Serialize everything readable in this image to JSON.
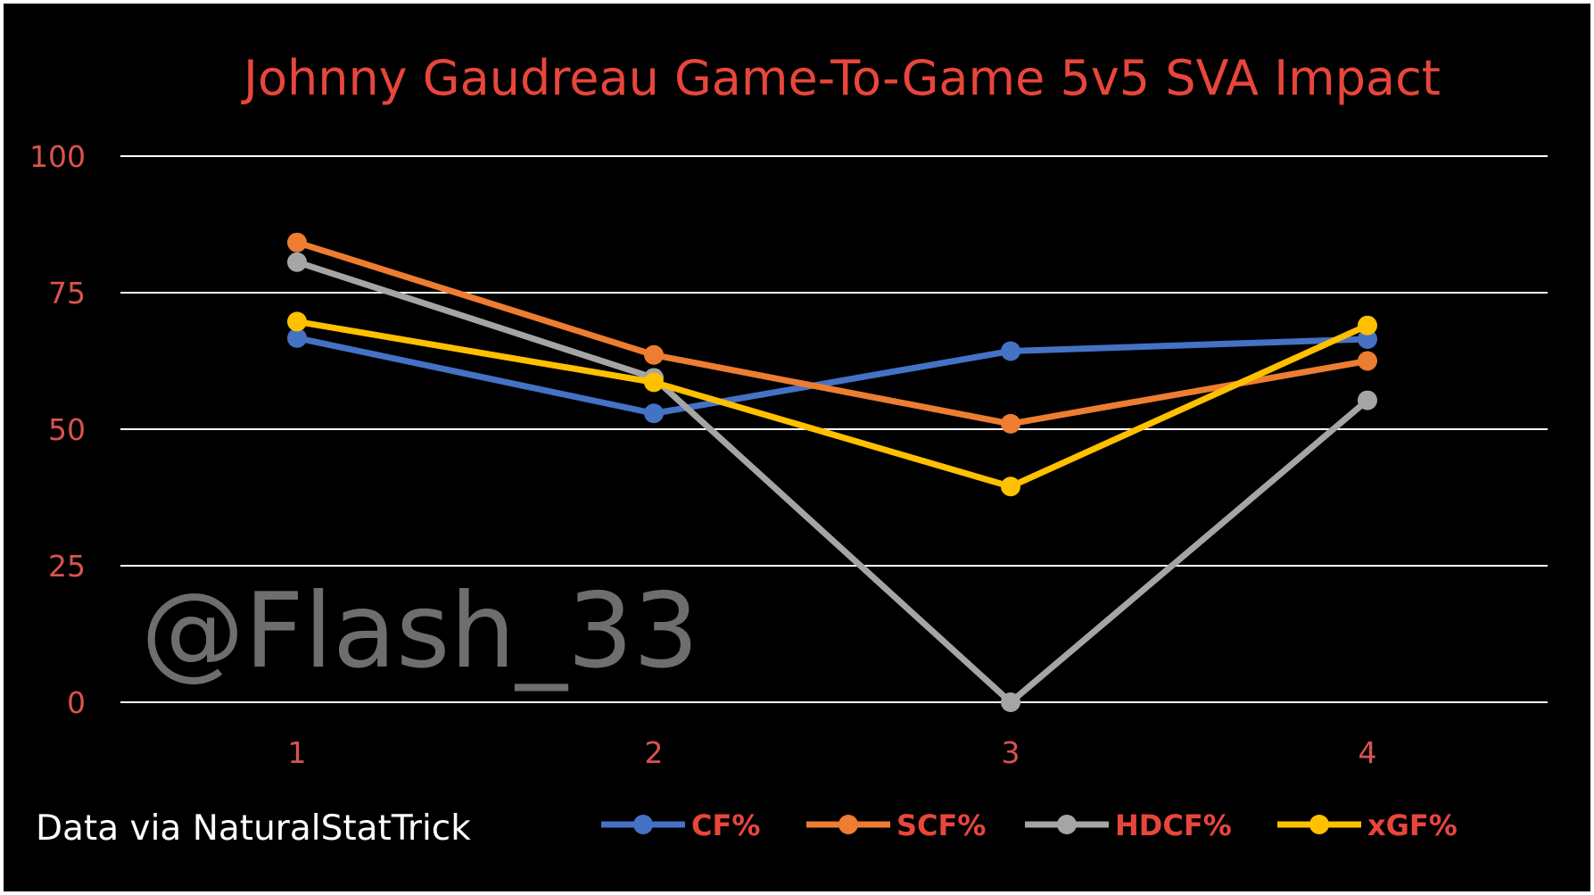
{
  "chart_data": {
    "type": "line",
    "title": "Johnny Gaudreau Game-To-Game 5v5 SVA Impact",
    "categories": [
      "1",
      "2",
      "3",
      "4"
    ],
    "ylim": [
      0,
      100
    ],
    "yticks": [
      "0",
      "25",
      "50",
      "75",
      "100"
    ],
    "grid": true,
    "legend_position": "bottom",
    "series": [
      {
        "name": "CF%",
        "color": "#4472c4",
        "values": [
          66.7,
          52.9,
          64.3,
          66.5
        ]
      },
      {
        "name": "SCF%",
        "color": "#ed7d31",
        "values": [
          84.2,
          63.6,
          51.0,
          62.5
        ]
      },
      {
        "name": "HDCF%",
        "color": "#a5a5a5",
        "values": [
          80.6,
          59.4,
          0.0,
          55.3
        ]
      },
      {
        "name": "xGF%",
        "color": "#ffc000",
        "values": [
          69.7,
          58.6,
          39.5,
          69.0
        ]
      }
    ]
  },
  "watermark": "@Flash_33",
  "credit": "Data via NaturalStatTrick",
  "colors": {
    "background": "#000000",
    "text_accent": "#e8463b",
    "tick_color": "#d9534f",
    "grid": "#ffffff"
  }
}
